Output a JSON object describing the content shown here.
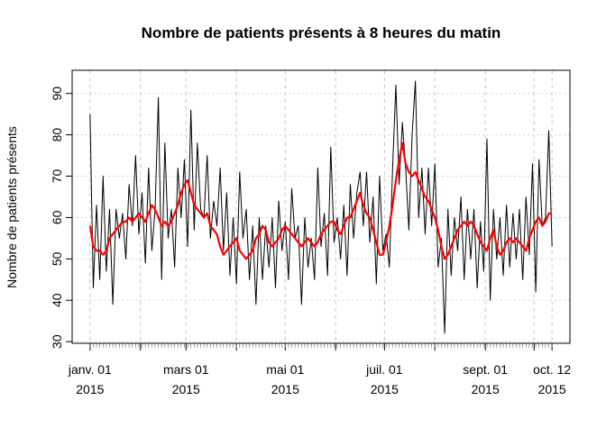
{
  "chart_data": {
    "type": "line",
    "title": "Nombre de patients présents à 8 heures du matin",
    "y_label": "Nombre de patients présents",
    "x": [
      "2015-01-01",
      "2015-01-03",
      "2015-01-05",
      "2015-01-07",
      "2015-01-09",
      "2015-01-11",
      "2015-01-13",
      "2015-01-15",
      "2015-01-17",
      "2015-01-19",
      "2015-01-21",
      "2015-01-23",
      "2015-01-25",
      "2015-01-27",
      "2015-01-29",
      "2015-01-31",
      "2015-02-02",
      "2015-02-04",
      "2015-02-06",
      "2015-02-08",
      "2015-02-10",
      "2015-02-12",
      "2015-02-14",
      "2015-02-16",
      "2015-02-18",
      "2015-02-20",
      "2015-02-22",
      "2015-02-24",
      "2015-02-26",
      "2015-02-28",
      "2015-03-02",
      "2015-03-04",
      "2015-03-06",
      "2015-03-08",
      "2015-03-10",
      "2015-03-12",
      "2015-03-14",
      "2015-03-16",
      "2015-03-18",
      "2015-03-20",
      "2015-03-22",
      "2015-03-24",
      "2015-03-26",
      "2015-03-28",
      "2015-03-30",
      "2015-04-01",
      "2015-04-03",
      "2015-04-05",
      "2015-04-07",
      "2015-04-09",
      "2015-04-11",
      "2015-04-13",
      "2015-04-15",
      "2015-04-17",
      "2015-04-19",
      "2015-04-21",
      "2015-04-23",
      "2015-04-25",
      "2015-04-27",
      "2015-04-29",
      "2015-05-01",
      "2015-05-03",
      "2015-05-05",
      "2015-05-07",
      "2015-05-09",
      "2015-05-11",
      "2015-05-13",
      "2015-05-15",
      "2015-05-17",
      "2015-05-19",
      "2015-05-21",
      "2015-05-23",
      "2015-05-25",
      "2015-05-27",
      "2015-05-29",
      "2015-05-31",
      "2015-06-02",
      "2015-06-04",
      "2015-06-06",
      "2015-06-08",
      "2015-06-10",
      "2015-06-12",
      "2015-06-14",
      "2015-06-16",
      "2015-06-18",
      "2015-06-20",
      "2015-06-22",
      "2015-06-24",
      "2015-06-26",
      "2015-06-28",
      "2015-06-30",
      "2015-07-02",
      "2015-07-04",
      "2015-07-06",
      "2015-07-08",
      "2015-07-10",
      "2015-07-12",
      "2015-07-14",
      "2015-07-16",
      "2015-07-18",
      "2015-07-20",
      "2015-07-22",
      "2015-07-24",
      "2015-07-26",
      "2015-07-28",
      "2015-07-30",
      "2015-08-01",
      "2015-08-03",
      "2015-08-05",
      "2015-08-07",
      "2015-08-09",
      "2015-08-11",
      "2015-08-13",
      "2015-08-15",
      "2015-08-17",
      "2015-08-19",
      "2015-08-21",
      "2015-08-23",
      "2015-08-25",
      "2015-08-27",
      "2015-08-29",
      "2015-08-31",
      "2015-09-02",
      "2015-09-04",
      "2015-09-06",
      "2015-09-08",
      "2015-09-10",
      "2015-09-12",
      "2015-09-14",
      "2015-09-16",
      "2015-09-18",
      "2015-09-20",
      "2015-09-22",
      "2015-09-24",
      "2015-09-26",
      "2015-09-28",
      "2015-09-30",
      "2015-10-02",
      "2015-10-04",
      "2015-10-06",
      "2015-10-08",
      "2015-10-10",
      "2015-10-12"
    ],
    "series": [
      {
        "color": "#000000",
        "width": 1,
        "values": [
          85,
          43,
          63,
          45,
          70,
          47,
          62,
          39,
          62,
          55,
          61,
          50,
          68,
          58,
          75,
          56,
          66,
          49,
          72,
          52,
          62,
          89,
          45,
          78,
          55,
          62,
          48,
          72,
          60,
          74,
          53,
          86,
          57,
          78,
          62,
          60,
          75,
          55,
          64,
          58,
          72,
          52,
          66,
          46,
          60,
          44,
          71,
          55,
          62,
          45,
          58,
          39,
          60,
          45,
          58,
          48,
          60,
          43,
          64,
          52,
          59,
          45,
          67,
          55,
          58,
          39,
          60,
          48,
          55,
          45,
          72,
          53,
          61,
          46,
          77,
          54,
          60,
          50,
          63,
          46,
          68,
          55,
          66,
          71,
          58,
          71,
          54,
          65,
          44,
          70,
          52,
          56,
          48,
          72,
          92,
          68,
          83,
          72,
          57,
          80,
          93,
          60,
          72,
          56,
          72,
          58,
          73,
          48,
          55,
          32,
          62,
          46,
          60,
          52,
          65,
          45,
          62,
          50,
          62,
          43,
          59,
          47,
          79,
          40,
          62,
          50,
          60,
          46,
          63,
          48,
          61,
          50,
          62,
          45,
          65,
          51,
          73,
          42,
          74,
          58,
          60,
          81,
          53
        ]
      },
      {
        "color": "#ff0000",
        "width": 2.2,
        "values": [
          58,
          53,
          52,
          52,
          51,
          52,
          55,
          56,
          57,
          58,
          59,
          59,
          60,
          59,
          60,
          61,
          60,
          59,
          61,
          63,
          62,
          60,
          58,
          59,
          58,
          59,
          61,
          63,
          66,
          68,
          69,
          66,
          63,
          62,
          61,
          60,
          61,
          58,
          57,
          56,
          53,
          51,
          52,
          53,
          54,
          55,
          52,
          51,
          50,
          51,
          52,
          55,
          56,
          58,
          57,
          54,
          53,
          54,
          55,
          57,
          58,
          57,
          56,
          55,
          54,
          53,
          54,
          55,
          54,
          53,
          54,
          56,
          57,
          58,
          59,
          59,
          57,
          56,
          58,
          60,
          60,
          62,
          64,
          66,
          63,
          61,
          60,
          57,
          54,
          51,
          51,
          54,
          58,
          63,
          69,
          74,
          78,
          73,
          71,
          70,
          71,
          69,
          67,
          65,
          64,
          62,
          60,
          57,
          53,
          50,
          51,
          53,
          55,
          57,
          58,
          59,
          58,
          59,
          58,
          56,
          54,
          53,
          52,
          55,
          57,
          53,
          51,
          52,
          54,
          55,
          54,
          55,
          54,
          53,
          52,
          55,
          57,
          59,
          60,
          58,
          59,
          61,
          61
        ]
      }
    ],
    "xlim": [
      "2014-12-21",
      "2015-10-23"
    ],
    "xticks": [
      {
        "value": "2015-01-01",
        "label": [
          "janv. 01",
          "2015"
        ]
      },
      {
        "value": "2015-02-01",
        "label": null
      },
      {
        "value": "2015-03-01",
        "label": [
          "mars 01",
          "2015"
        ]
      },
      {
        "value": "2015-04-01",
        "label": null
      },
      {
        "value": "2015-05-01",
        "label": [
          "mai 01",
          "2015"
        ]
      },
      {
        "value": "2015-06-01",
        "label": null
      },
      {
        "value": "2015-07-01",
        "label": [
          "juil. 01",
          "2015"
        ]
      },
      {
        "value": "2015-08-01",
        "label": null
      },
      {
        "value": "2015-09-01",
        "label": [
          "sept. 01",
          "2015"
        ]
      },
      {
        "value": "2015-10-01",
        "label": null
      },
      {
        "value": "2015-10-12",
        "label": [
          "oct. 12",
          "2015"
        ]
      }
    ],
    "ylim": [
      29.6,
      95.6
    ],
    "yticks": [
      30,
      40,
      50,
      60,
      70,
      80,
      90
    ],
    "grid": true
  }
}
